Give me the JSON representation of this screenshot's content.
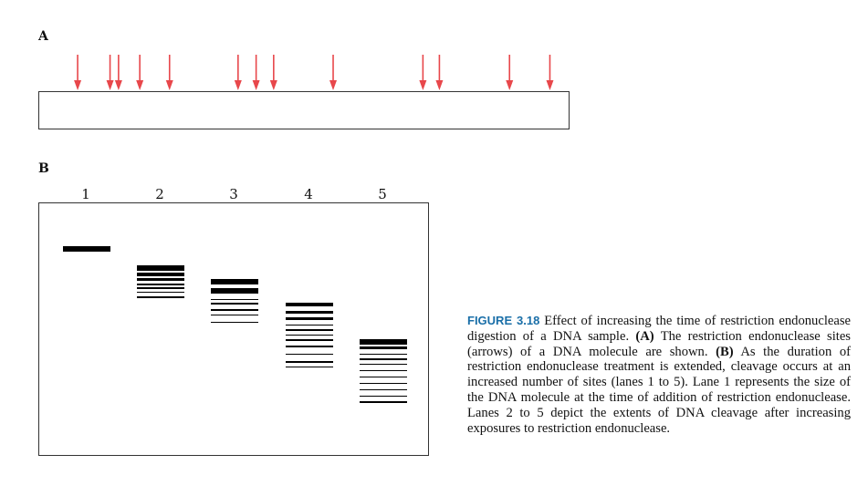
{
  "panel_a": {
    "label": "A",
    "arrow_color": "#e8474b",
    "cleavage_sites_fraction": [
      0.074,
      0.135,
      0.151,
      0.191,
      0.247,
      0.376,
      0.41,
      0.443,
      0.555,
      0.724,
      0.755,
      0.887,
      0.963
    ]
  },
  "panel_b": {
    "label": "B",
    "lanes": [
      {
        "number": "1",
        "bands": [
          {
            "pos": 0.18,
            "weight": 3
          }
        ]
      },
      {
        "number": "2",
        "bands": [
          {
            "pos": 0.255,
            "weight": 3
          },
          {
            "pos": 0.28,
            "weight": 2
          },
          {
            "pos": 0.3,
            "weight": 2
          },
          {
            "pos": 0.32,
            "weight": 1
          },
          {
            "pos": 0.335,
            "weight": 1
          },
          {
            "pos": 0.35,
            "weight": 1
          },
          {
            "pos": 0.37,
            "weight": 1
          }
        ]
      },
      {
        "number": "3",
        "bands": [
          {
            "pos": 0.31,
            "weight": 3
          },
          {
            "pos": 0.345,
            "weight": 3
          },
          {
            "pos": 0.38,
            "weight": 1
          },
          {
            "pos": 0.395,
            "weight": 1
          },
          {
            "pos": 0.42,
            "weight": 1
          },
          {
            "pos": 0.44,
            "weight": 1
          },
          {
            "pos": 0.47,
            "weight": 1
          }
        ]
      },
      {
        "number": "4",
        "bands": [
          {
            "pos": 0.4,
            "weight": 2
          },
          {
            "pos": 0.43,
            "weight": 2
          },
          {
            "pos": 0.455,
            "weight": 2
          },
          {
            "pos": 0.48,
            "weight": 1
          },
          {
            "pos": 0.5,
            "weight": 1
          },
          {
            "pos": 0.52,
            "weight": 1
          },
          {
            "pos": 0.54,
            "weight": 1
          },
          {
            "pos": 0.565,
            "weight": 1
          },
          {
            "pos": 0.595,
            "weight": 1
          },
          {
            "pos": 0.625,
            "weight": 1
          },
          {
            "pos": 0.645,
            "weight": 1
          }
        ]
      },
      {
        "number": "5",
        "bands": [
          {
            "pos": 0.545,
            "weight": 3
          },
          {
            "pos": 0.57,
            "weight": 2
          },
          {
            "pos": 0.595,
            "weight": 1
          },
          {
            "pos": 0.615,
            "weight": 1
          },
          {
            "pos": 0.635,
            "weight": 1
          },
          {
            "pos": 0.66,
            "weight": 1
          },
          {
            "pos": 0.685,
            "weight": 1
          },
          {
            "pos": 0.71,
            "weight": 1
          },
          {
            "pos": 0.735,
            "weight": 1
          },
          {
            "pos": 0.76,
            "weight": 1
          },
          {
            "pos": 0.785,
            "weight": 1
          }
        ]
      }
    ]
  },
  "caption": {
    "figure_label": "FIGURE 3.18",
    "text_1": " Effect of increasing the time of restriction endonuclease digestion of a DNA sample. ",
    "bold_a": "(A)",
    "text_2": " The restriction endonuclease sites (arrows) of a DNA molecule are shown. ",
    "bold_b": "(B)",
    "text_3": " As the duration of restriction endonuclease treatment is extended, cleavage occurs at an increased number of sites (lanes 1 to 5). Lane 1 represents the size of the DNA molecule at the time of addition of restriction endonuclease. Lanes 2 to 5 depict the extents of DNA cleavage after increasing exposures to restriction endonuclease."
  }
}
